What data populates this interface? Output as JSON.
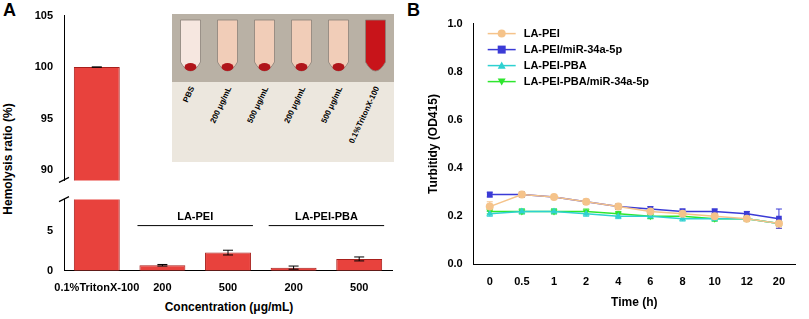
{
  "chart_data": [
    {
      "panel": "A",
      "type": "bar",
      "categories": [
        "0.1%TritonX-100",
        "200",
        "500",
        "200",
        "500"
      ],
      "groups": [
        null,
        "LA-PEI",
        "LA-PEI",
        "LA-PEI-PBA",
        "LA-PEI-PBA"
      ],
      "values": [
        100,
        0.7,
        2.3,
        0.4,
        1.5
      ],
      "errors": [
        0,
        0.1,
        0.3,
        0.2,
        0.25
      ],
      "color": "#e8423d",
      "x_label": "Concentration (μg/mL)",
      "y_label": "Hemolysis ratio (%)",
      "y_segments": [
        {
          "ylim": [
            0,
            9
          ],
          "yticks": [
            0,
            5
          ]
        },
        {
          "ylim": [
            89,
            105
          ],
          "yticks": [
            90,
            95,
            100,
            105
          ]
        }
      ],
      "grid": false,
      "inset_labels": [
        "PBS",
        "200 μg/mL",
        "500 μg/mL",
        "200 μg/mL",
        "500 μg/mL",
        "0.1%TritonX-100"
      ]
    },
    {
      "panel": "B",
      "type": "line",
      "categories": [
        "0",
        "0.5",
        "1",
        "2",
        "4",
        "6",
        "8",
        "10",
        "12",
        "20"
      ],
      "x_label": "Time (h)",
      "y_label": "Turbitidy (OD415)",
      "ylim": [
        0,
        1
      ],
      "yticks": [
        {
          "value": 0,
          "label": "0.0"
        },
        {
          "value": 0.2,
          "label": "0.2"
        },
        {
          "value": 0.4,
          "label": "0.4"
        },
        {
          "value": 0.6,
          "label": "0.6"
        },
        {
          "value": 0.8,
          "label": "0.8"
        },
        {
          "value": 1,
          "label": "1.0"
        }
      ],
      "grid": false,
      "legend": "upper left",
      "series": [
        {
          "name": "LA-PEI",
          "color": "#f5c38a",
          "marker": "circle",
          "line_style": "solid",
          "values": [
            0.24,
            0.29,
            0.28,
            0.26,
            0.24,
            0.22,
            0.21,
            0.2,
            0.19,
            0.17
          ],
          "errors": [
            0.02,
            0.01,
            0.01,
            0.01,
            0.01,
            0.01,
            0.01,
            0.01,
            0.01,
            0.02
          ]
        },
        {
          "name": "LA-PEI/miR-34a-5p",
          "color": "#3b3bd6",
          "marker": "square",
          "line_style": "solid",
          "values": [
            0.29,
            0.29,
            0.28,
            0.26,
            0.24,
            0.23,
            0.22,
            0.22,
            0.21,
            0.19
          ],
          "errors": [
            0.01,
            0.01,
            0.01,
            0.01,
            0.01,
            0.01,
            0.01,
            0.01,
            0.01,
            0.04
          ]
        },
        {
          "name": "LA-PEI-PBA",
          "color": "#2ed1d1",
          "marker": "triangle",
          "line_style": "solid",
          "values": [
            0.21,
            0.22,
            0.22,
            0.21,
            0.2,
            0.2,
            0.19,
            0.19,
            0.19,
            0.17
          ],
          "errors": [
            0.01,
            0.01,
            0.01,
            0.01,
            0.01,
            0.01,
            0.01,
            0.01,
            0.01,
            0.01
          ]
        },
        {
          "name": "LA-PEI-PBA/miR-34a-5p",
          "color": "#2ee62e",
          "marker": "triangle_down",
          "line_style": "solid",
          "values": [
            0.22,
            0.22,
            0.22,
            0.22,
            0.21,
            0.2,
            0.2,
            0.19,
            0.19,
            0.17
          ],
          "errors": [
            0.01,
            0.01,
            0.01,
            0.01,
            0.01,
            0.01,
            0.01,
            0.01,
            0.01,
            0.01
          ]
        }
      ]
    }
  ]
}
